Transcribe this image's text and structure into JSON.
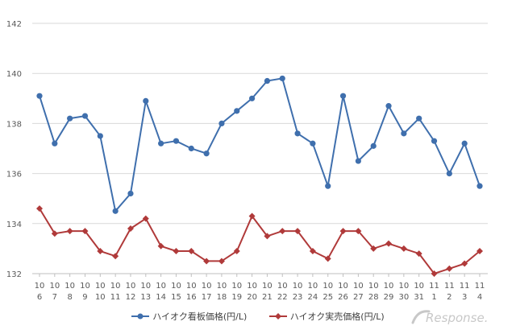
{
  "chart_data": {
    "type": "line",
    "title": "",
    "xlabel": "",
    "ylabel": "",
    "ylim": [
      132,
      142
    ],
    "yticks": [
      132,
      134,
      136,
      138,
      140,
      142
    ],
    "grid": true,
    "legend_position": "bottom",
    "categories": [
      "10/6",
      "10/7",
      "10/8",
      "10/9",
      "10/10",
      "10/11",
      "10/12",
      "10/13",
      "10/14",
      "10/15",
      "10/16",
      "10/17",
      "10/18",
      "10/19",
      "10/20",
      "10/21",
      "10/22",
      "10/23",
      "10/24",
      "10/25",
      "10/26",
      "10/27",
      "10/28",
      "10/29",
      "10/30",
      "10/31",
      "11/1",
      "11/2",
      "11/3",
      "11/4"
    ],
    "series": [
      {
        "name": "ハイオク看板価格(円/L)",
        "color": "#3f6fad",
        "marker": "circle",
        "values": [
          139.1,
          137.2,
          138.2,
          138.3,
          137.5,
          134.5,
          135.2,
          138.9,
          137.2,
          137.3,
          137.0,
          136.8,
          138.0,
          138.5,
          139.0,
          139.7,
          139.8,
          137.6,
          137.2,
          135.5,
          139.1,
          136.5,
          137.1,
          138.7,
          137.6,
          138.2,
          137.3,
          136.0,
          137.2,
          135.5
        ]
      },
      {
        "name": "ハイオク実売価格(円/L)",
        "color": "#b03a3a",
        "marker": "diamond",
        "values": [
          134.6,
          133.6,
          133.7,
          133.7,
          132.9,
          132.7,
          133.8,
          134.2,
          133.1,
          132.9,
          132.9,
          132.5,
          132.5,
          132.9,
          134.3,
          133.5,
          133.7,
          133.7,
          132.9,
          132.6,
          133.7,
          133.7,
          133.0,
          133.2,
          133.0,
          132.8,
          132.0,
          132.2,
          132.4,
          132.9
        ]
      }
    ]
  },
  "watermark": {
    "text": "Response.",
    "icon": "response-logo-icon"
  }
}
